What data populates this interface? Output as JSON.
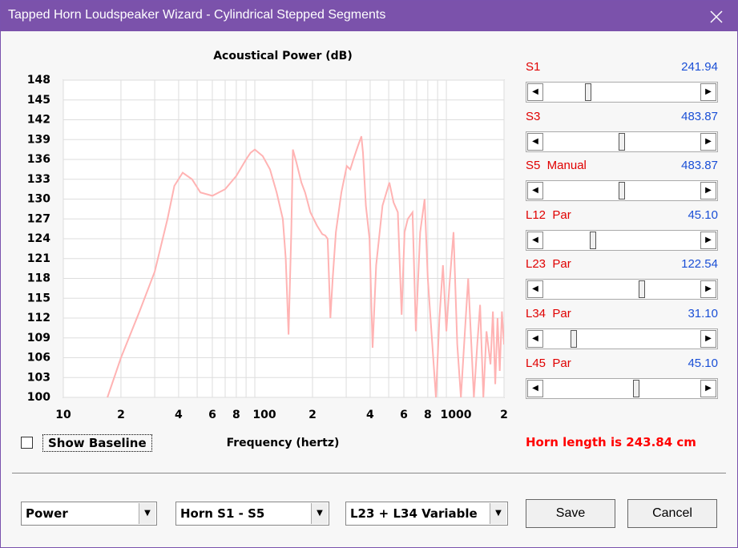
{
  "window": {
    "title": "Tapped Horn Loudspeaker Wizard - Cylindrical Stepped Segments"
  },
  "chart_data": {
    "type": "line",
    "title": "Acoustical Power (dB)",
    "x_label": "Frequency (hertz)",
    "x_scale": "log",
    "grid": true,
    "color": "#ffb3b3",
    "xlim": [
      10,
      2000
    ],
    "ylim": [
      100,
      148
    ],
    "xticks": [
      10,
      {
        "value": 20,
        "label": "2"
      },
      {
        "value": 40,
        "label": "4"
      },
      {
        "value": 60,
        "label": "6"
      },
      {
        "value": 80,
        "label": "8"
      },
      100,
      {
        "value": 200,
        "label": "2"
      },
      {
        "value": 400,
        "label": "4"
      },
      {
        "value": 600,
        "label": "6"
      },
      {
        "value": 800,
        "label": "8"
      },
      1000,
      {
        "value": 2000,
        "label": "2"
      }
    ],
    "xgrid": [
      10,
      20,
      30,
      40,
      50,
      60,
      70,
      80,
      90,
      100,
      200,
      300,
      400,
      500,
      600,
      700,
      800,
      900,
      1000,
      2000
    ],
    "yticks": [
      100,
      103,
      106,
      109,
      112,
      115,
      118,
      121,
      124,
      127,
      130,
      133,
      136,
      139,
      142,
      145,
      148
    ],
    "x": [
      17,
      20,
      25,
      30,
      35,
      38,
      42,
      47,
      52,
      60,
      70,
      80,
      90,
      95,
      100,
      110,
      120,
      130,
      140,
      145,
      150,
      155,
      158,
      165,
      175,
      183,
      195,
      211,
      225,
      233,
      240,
      248,
      255,
      265,
      283,
      302,
      315,
      327,
      345,
      360,
      367,
      380,
      397,
      412,
      430,
      464,
      504,
      530,
      558,
      584,
      605,
      629,
      666,
      693,
      730,
      770,
      800,
      882,
      920,
      960,
      1000,
      1038,
      1090,
      1140,
      1191,
      1250,
      1300,
      1392,
      1450,
      1500,
      1560,
      1620,
      1700,
      1750,
      1800,
      1850,
      1900,
      1950,
      2000
    ],
    "values": [
      100,
      106,
      113,
      119,
      127,
      132,
      134,
      133,
      131,
      130.5,
      131.5,
      133.5,
      136,
      137,
      137.5,
      136.5,
      134.5,
      131,
      127,
      121,
      109.5,
      125,
      137.5,
      135.5,
      132.5,
      131,
      128,
      126,
      124.7,
      124.5,
      124,
      112,
      118,
      125,
      131,
      135,
      134.5,
      136,
      138,
      139.5,
      137,
      129,
      124,
      107.5,
      120,
      129,
      132.5,
      129.5,
      128,
      112.5,
      125,
      127,
      128,
      110,
      125,
      130,
      118,
      100,
      112,
      120,
      110,
      117,
      125,
      108,
      100,
      110,
      118,
      100,
      108,
      114,
      100,
      110,
      105,
      113,
      102,
      112,
      104,
      113,
      108
    ]
  },
  "sliders": [
    {
      "label": "S1",
      "value": "241.94"
    },
    {
      "label": "S3",
      "value": "483.87"
    },
    {
      "label": "S5  Manual",
      "value": "483.87"
    },
    {
      "label": "L12  Par",
      "value": "45.10"
    },
    {
      "label": "L23  Par",
      "value": "122.54"
    },
    {
      "label": "L34  Par",
      "value": "31.10"
    },
    {
      "label": "L45  Par",
      "value": "45.10"
    }
  ],
  "checkbox": "Show Baseline",
  "status": "Horn length is 243.84 cm",
  "dropdowns": [
    "Power",
    "Horn S1 - S5",
    "L23 + L34 Variable"
  ],
  "buttons": [
    "Save",
    "Cancel"
  ]
}
